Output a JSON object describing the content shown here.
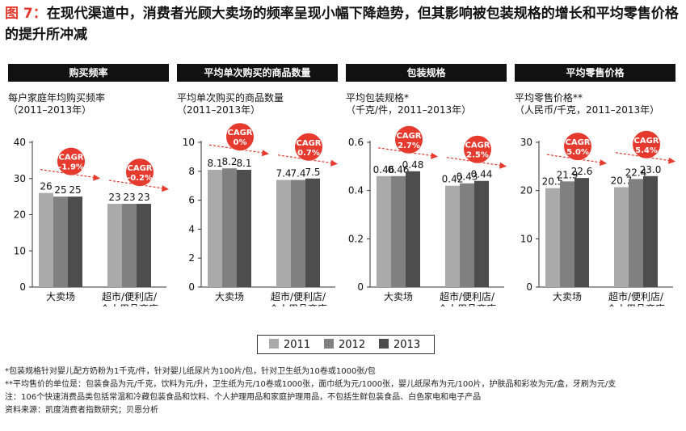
{
  "title": {
    "figure_label": "图 7：",
    "text": "在现代渠道中，消费者光顾大卖场的频率呈现小幅下降趋势，但其影响被包装规格的增长和平均零售价格的提升所冲减"
  },
  "colors": {
    "y2011": "#aaaaaa",
    "y2012": "#808080",
    "y2013": "#4d4d4d",
    "accent": "#e63a2e",
    "header": "#111111"
  },
  "legend": [
    {
      "label": "2011",
      "color": "#aaaaaa"
    },
    {
      "label": "2012",
      "color": "#808080"
    },
    {
      "label": "2013",
      "color": "#4d4d4d"
    }
  ],
  "chart_data": [
    {
      "type": "bar",
      "title": "购买频率",
      "subtitle": [
        "每户家庭年均购买频率",
        "（2011–2013年）"
      ],
      "categories": [
        "大卖场",
        "超市/便利店/\n个人用品商店"
      ],
      "series": [
        {
          "name": "2011",
          "values": [
            26,
            23
          ]
        },
        {
          "name": "2012",
          "values": [
            25,
            23
          ]
        },
        {
          "name": "2013",
          "values": [
            25,
            23
          ]
        }
      ],
      "labels": [
        [
          "26",
          "25",
          "25"
        ],
        [
          "23",
          "23",
          "23"
        ]
      ],
      "cagr": [
        {
          "text": "CAGR",
          "value": "-1.9%"
        },
        {
          "text": "CAGR",
          "value": "-0.2%"
        }
      ],
      "ylim": [
        0,
        40
      ],
      "yticks": [
        "0",
        "10",
        "20",
        "30",
        "40"
      ]
    },
    {
      "type": "bar",
      "title": "平均单次购买的商品数量",
      "subtitle": [
        "平均单次购买的商品数量",
        "（2011–2013年）"
      ],
      "categories": [
        "大卖场",
        "超市/便利店/\n个人用品商店"
      ],
      "series": [
        {
          "name": "2011",
          "values": [
            8.1,
            7.4
          ]
        },
        {
          "name": "2012",
          "values": [
            8.2,
            7.4
          ]
        },
        {
          "name": "2013",
          "values": [
            8.1,
            7.5
          ]
        }
      ],
      "labels": [
        [
          "8.1",
          "8.2",
          "8.1"
        ],
        [
          "7.4",
          "7.4",
          "7.5"
        ]
      ],
      "cagr": [
        {
          "text": "CAGR",
          "value": "0%"
        },
        {
          "text": "CAGR",
          "value": "0.7%"
        }
      ],
      "ylim": [
        0,
        10
      ],
      "yticks": [
        "0",
        "2",
        "4",
        "6",
        "8",
        "10"
      ]
    },
    {
      "type": "bar",
      "title": "包装规格",
      "subtitle": [
        "平均包装规格*",
        "（千克/件，2011–2013年）"
      ],
      "categories": [
        "大卖场",
        "超市/便利店/\n个人用品商店"
      ],
      "series": [
        {
          "name": "2011",
          "values": [
            0.46,
            0.42
          ]
        },
        {
          "name": "2012",
          "values": [
            0.46,
            0.43
          ]
        },
        {
          "name": "2013",
          "values": [
            0.48,
            0.44
          ]
        }
      ],
      "labels": [
        [
          "0.46",
          "0.46",
          "0.48"
        ],
        [
          "0.42",
          "0.43",
          "0.44"
        ]
      ],
      "cagr": [
        {
          "text": "CAGR",
          "value": "2.7%"
        },
        {
          "text": "CAGR",
          "value": "2.5%"
        }
      ],
      "ylim": [
        0,
        0.6
      ],
      "yticks": [
        "0",
        "0.2",
        "0.4",
        "0.6"
      ]
    },
    {
      "type": "bar",
      "title": "平均零售价格",
      "subtitle": [
        "平均零售价格**",
        "（人民币/千克，2011–2013年）"
      ],
      "categories": [
        "大卖场",
        "超市/便利店/\n个人用品商店"
      ],
      "series": [
        {
          "name": "2011",
          "values": [
            20.5,
            20.7
          ]
        },
        {
          "name": "2012",
          "values": [
            21.9,
            22.4
          ]
        },
        {
          "name": "2013",
          "values": [
            22.6,
            23.0
          ]
        }
      ],
      "labels": [
        [
          "20.5",
          "21.9",
          "22.6"
        ],
        [
          "20.7",
          "22.4",
          "23.0"
        ]
      ],
      "cagr": [
        {
          "text": "CAGR",
          "value": "5.0%"
        },
        {
          "text": "CAGR",
          "value": "5.4%"
        }
      ],
      "ylim": [
        0,
        30
      ],
      "yticks": [
        "0",
        "10",
        "20",
        "30"
      ]
    }
  ],
  "notes": [
    "*包装规格针对婴儿配方奶粉为1千克/件，针对婴儿纸尿片为100片/包，针对卫生纸为10卷或1000张/包",
    "**平均售价的单位是：包装食品为元/千克，饮料为元/升，卫生纸为元/10卷或1000张，面巾纸为元/1000张，婴儿纸尿布为元/100片，护肤品和彩妆为元/盒，牙刷为元/支",
    "注：106个快速消费品类包括常温和冷藏包装食品和饮料、个人护理用品和家庭护理用品，不包括生鲜包装食品、白色家电和电子产品",
    "资料来源：凯度消费者指数研究；贝恩分析"
  ]
}
